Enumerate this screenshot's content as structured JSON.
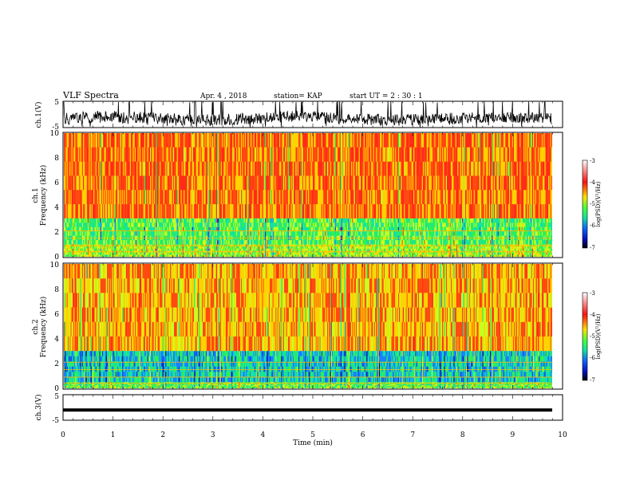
{
  "header": {
    "title": "VLF Spectra",
    "date": "Apr. 4 , 2018",
    "station": "station= KAP",
    "start": "start  UT  =   2 : 30 : 1"
  },
  "colors": {
    "spectrogram_high": "#ff2a1a",
    "spectrogram_mid": "#ffd200",
    "spectrogram_low": "#20e070",
    "spectrogram_lowest": "#1a40ff",
    "waveform": "#000000"
  },
  "chart_data": [
    {
      "type": "line",
      "name": "ch1-waveform",
      "ylabel": "ch.1(V)",
      "yticks": [
        "5",
        "-5"
      ],
      "ylim": [
        -5,
        5
      ],
      "xlim": [
        0,
        10
      ],
      "description_values": {
        "center": -1.5,
        "amplitude": 2.2
      }
    },
    {
      "type": "heatmap",
      "name": "ch1-spectrogram",
      "ylabel_line1": "ch.1",
      "ylabel_line2": "Frequency (kHz)",
      "yticks": [
        "0",
        "2",
        "4",
        "6",
        "8",
        "10"
      ],
      "ylim": [
        0,
        10
      ],
      "xlim": [
        0,
        9.8
      ],
      "colorbar": {
        "label": "log(PSD)(V²/Hz)",
        "ticks": [
          "-3",
          "-4",
          "-5",
          "-6",
          "-7"
        ],
        "range": [
          -7,
          -3
        ]
      },
      "bands": [
        {
          "from_khz": 3.1,
          "to_khz": 10.0,
          "level": -3.6
        },
        {
          "from_khz": 1.0,
          "to_khz": 3.1,
          "level": -5.0
        },
        {
          "from_khz": 0.0,
          "to_khz": 1.0,
          "level": -4.6
        }
      ]
    },
    {
      "type": "heatmap",
      "name": "ch2-spectrogram",
      "ylabel_line1": "ch.2",
      "ylabel_line2": "Frequency (kHz)",
      "yticks": [
        "0",
        "2",
        "4",
        "6",
        "8",
        "10"
      ],
      "ylim": [
        0,
        10
      ],
      "xlim": [
        0,
        9.8
      ],
      "colorbar": {
        "label": "log(PSD)(V²/Hz)",
        "ticks": [
          "-3",
          "-4",
          "-5",
          "-6",
          "-7"
        ],
        "range": [
          -7,
          -3
        ]
      },
      "bands": [
        {
          "from_khz": 3.0,
          "to_khz": 10.0,
          "level": -3.9
        },
        {
          "from_khz": 0.5,
          "to_khz": 3.0,
          "level": -5.6
        },
        {
          "from_khz": 0.0,
          "to_khz": 0.5,
          "level": -4.8
        }
      ]
    },
    {
      "type": "line",
      "name": "ch3-waveform",
      "ylabel": "ch.3(V)",
      "yticks": [
        "5",
        "-5"
      ],
      "ylim": [
        -5,
        5
      ],
      "xlim": [
        0,
        9.8
      ],
      "constant_value": -1.0,
      "xlabel": "Time  (min)",
      "xticks": [
        "0",
        "1",
        "2",
        "3",
        "4",
        "5",
        "6",
        "7",
        "8",
        "9",
        "10"
      ]
    }
  ]
}
